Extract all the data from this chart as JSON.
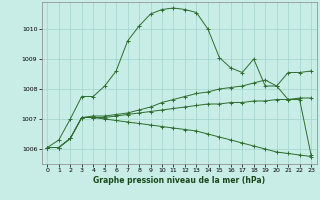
{
  "xlabel": "Graphe pression niveau de la mer (hPa)",
  "background_color": "#c8ece6",
  "grid_color": "#a0d4cc",
  "line_color": "#2d6e2d",
  "xlim": [
    -0.5,
    23.5
  ],
  "ylim": [
    1005.5,
    1010.9
  ],
  "xticks": [
    0,
    1,
    2,
    3,
    4,
    5,
    6,
    7,
    8,
    9,
    10,
    11,
    12,
    13,
    14,
    15,
    16,
    17,
    18,
    19,
    20,
    21,
    22,
    23
  ],
  "yticks": [
    1006,
    1007,
    1008,
    1009,
    1010
  ],
  "series": [
    [
      1006.05,
      1006.3,
      1007.0,
      1007.75,
      1007.75,
      1008.1,
      1008.6,
      1009.6,
      1010.1,
      1010.5,
      1010.65,
      1010.7,
      1010.65,
      1010.55,
      1010.0,
      1009.05,
      1008.7,
      1008.55,
      1009.0,
      1008.1,
      1008.1,
      1007.65,
      1007.65,
      1005.8
    ],
    [
      1006.05,
      1006.05,
      1006.35,
      1007.05,
      1007.1,
      1007.1,
      1007.15,
      1007.2,
      1007.3,
      1007.4,
      1007.55,
      1007.65,
      1007.75,
      1007.85,
      1007.9,
      1008.0,
      1008.05,
      1008.1,
      1008.2,
      1008.3,
      1008.1,
      1008.55,
      1008.55,
      1008.6
    ],
    [
      1006.05,
      1006.05,
      1006.35,
      1007.05,
      1007.05,
      1007.05,
      1007.1,
      1007.15,
      1007.2,
      1007.25,
      1007.3,
      1007.35,
      1007.4,
      1007.45,
      1007.5,
      1007.5,
      1007.55,
      1007.55,
      1007.6,
      1007.6,
      1007.65,
      1007.65,
      1007.7,
      1007.7
    ],
    [
      1006.05,
      1006.05,
      1006.35,
      1007.05,
      1007.05,
      1007.0,
      1006.95,
      1006.9,
      1006.85,
      1006.8,
      1006.75,
      1006.7,
      1006.65,
      1006.6,
      1006.5,
      1006.4,
      1006.3,
      1006.2,
      1006.1,
      1006.0,
      1005.9,
      1005.85,
      1005.8,
      1005.75
    ]
  ]
}
